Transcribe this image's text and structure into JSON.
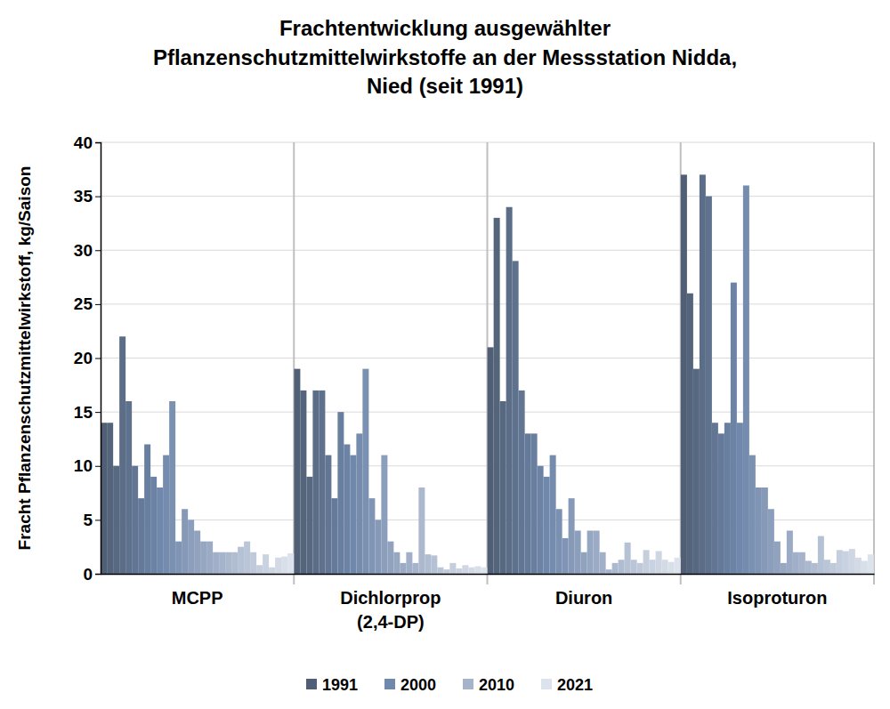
{
  "chart_data": {
    "type": "bar",
    "title": "Frachtentwicklung ausgewählter\nPflanzenschutzmittelwirkstoffe an der Messstation Nidda,\nNied (seit 1991)",
    "y_label": "Fracht Pflanzenschutzmittelwirkstoff, kg/Saison",
    "categories": [
      "MCPP",
      "Dichlorprop\n(2,4-DP)",
      "Diuron",
      "Isoproturon"
    ],
    "ylim": [
      0,
      40
    ],
    "yticks": [
      0,
      5,
      10,
      15,
      20,
      25,
      30,
      35,
      40
    ],
    "grid": true,
    "legend": "bottom",
    "series": [
      {
        "name": "1991",
        "color": "#505f75",
        "values": [
          14,
          19,
          21,
          37
        ]
      },
      {
        "color": "#54647b",
        "values": [
          14,
          17,
          33,
          26
        ]
      },
      {
        "color": "#576881",
        "values": [
          10,
          9,
          16,
          19
        ]
      },
      {
        "color": "#5b6d87",
        "values": [
          22,
          17,
          34,
          37
        ]
      },
      {
        "color": "#5e718d",
        "values": [
          16,
          17,
          29,
          35
        ]
      },
      {
        "color": "#627693",
        "values": [
          10,
          11,
          17,
          14
        ]
      },
      {
        "color": "#657a99",
        "values": [
          7,
          7,
          13,
          13
        ]
      },
      {
        "color": "#697f9f",
        "values": [
          12,
          15,
          13,
          14
        ]
      },
      {
        "color": "#6c83a5",
        "values": [
          9,
          12,
          10,
          27
        ]
      },
      {
        "name": "2000",
        "color": "#7088ab",
        "values": [
          8,
          11,
          9,
          14
        ]
      },
      {
        "color": "#758cae",
        "values": [
          11,
          13,
          11,
          36
        ]
      },
      {
        "color": "#7b91b1",
        "values": [
          16,
          19,
          6,
          11
        ]
      },
      {
        "color": "#8095b5",
        "values": [
          3,
          7,
          3.3,
          8
        ]
      },
      {
        "color": "#869ab8",
        "values": [
          6,
          5,
          7,
          8
        ]
      },
      {
        "color": "#8b9ebb",
        "values": [
          5,
          11,
          4,
          6
        ]
      },
      {
        "color": "#90a2be",
        "values": [
          4,
          3,
          2,
          3
        ]
      },
      {
        "color": "#96a7c1",
        "values": [
          3,
          2,
          4,
          1
        ]
      },
      {
        "color": "#9babc5",
        "values": [
          3,
          1,
          4,
          4
        ]
      },
      {
        "color": "#a1b0c8",
        "values": [
          2,
          2,
          2,
          2
        ]
      },
      {
        "name": "2010",
        "color": "#a6b4cb",
        "values": [
          2,
          1,
          0.4,
          2
        ]
      },
      {
        "color": "#abb8ce",
        "values": [
          2,
          8,
          1,
          1.2
        ]
      },
      {
        "color": "#b0bdd1",
        "values": [
          2,
          1.8,
          1.3,
          1
        ]
      },
      {
        "color": "#b5c1d4",
        "values": [
          2.5,
          1.7,
          2.9,
          3.5
        ]
      },
      {
        "color": "#bac5d7",
        "values": [
          3,
          0.6,
          1.3,
          1.3
        ]
      },
      {
        "color": "#bfc9da",
        "values": [
          2,
          0.4,
          1,
          1
        ]
      },
      {
        "color": "#c4cedd",
        "values": [
          0.8,
          1,
          2.2,
          2.2
        ]
      },
      {
        "color": "#c9d2e0",
        "values": [
          1.8,
          0.5,
          1.3,
          2.1
        ]
      },
      {
        "color": "#ced6e3",
        "values": [
          0.6,
          0.8,
          2.1,
          2.3
        ]
      },
      {
        "color": "#d3dae6",
        "values": [
          1.5,
          0.6,
          1.3,
          1.5
        ]
      },
      {
        "color": "#d8dfe9",
        "values": [
          1.6,
          0.7,
          1.1,
          1.2
        ]
      },
      {
        "name": "2021",
        "color": "#dde3ec",
        "values": [
          1.9,
          0.6,
          1.5,
          1.8
        ]
      }
    ]
  }
}
